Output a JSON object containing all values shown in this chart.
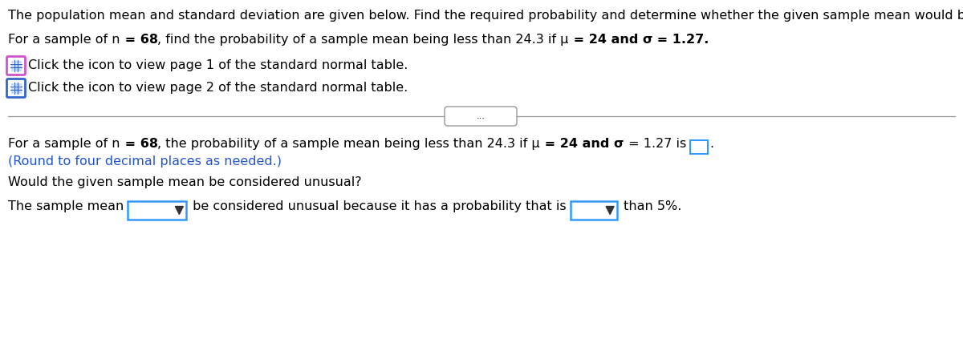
{
  "line1": "The population mean and standard deviation are given below. Find the required probability and determine whether the given sample mean would be considered unusual.",
  "line2a": "For a sample of n",
  "line2b": " = 68",
  "line2c": ", find the probability of a sample mean being less than 24.3 if μ",
  "line2d": " = 24 and σ",
  "line2e": " = 1.27.",
  "icon1_text": "Click the icon to view page 1 of the standard normal table.",
  "icon2_text": "Click the icon to view page 2 of the standard normal table.",
  "divider_dots": "...",
  "line3a": "For a sample of n",
  "line3b": " = 68",
  "line3c": ", the probability of a sample mean being less than 24.3 if μ",
  "line3d": " = 24 and σ",
  "line3e": " = 1.27 is ",
  "line3f": ".",
  "line3_blue": "(Round to four decimal places as needed.)",
  "line4": "Would the given sample mean be considered unusual?",
  "line5_pre": "The sample mean",
  "line5_mid": " be considered unusual because it has a probability that is",
  "line5_post": " than 5%.",
  "bg_color": "#ffffff",
  "text_color": "#000000",
  "blue_color": "#2255cc",
  "icon1_border_color": "#cc55cc",
  "icon2_border_color": "#3366cc",
  "icon_grid_color": "#3366cc",
  "input_box_color": "#3399ff",
  "divider_color": "#999999",
  "font_size": 11.5,
  "fig_width": 12.0,
  "fig_height": 4.38,
  "dpi": 100
}
